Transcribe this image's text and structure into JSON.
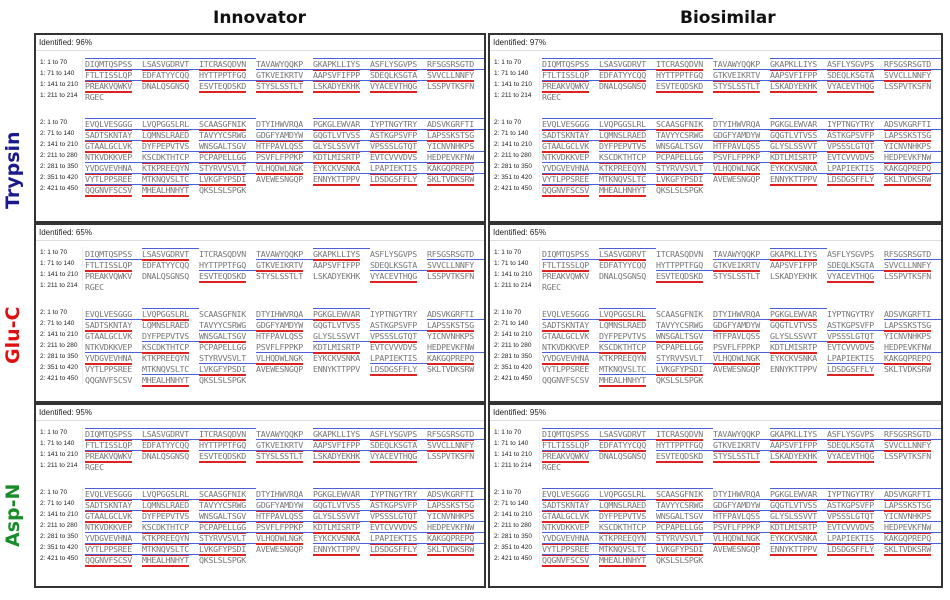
{
  "columns": {
    "left": "Innovator",
    "right": "Biosimilar"
  },
  "enzymes": [
    {
      "name": "Trypsin",
      "color": "#1a1a8c"
    },
    {
      "name": "Glu-C",
      "color": "#dd1111"
    },
    {
      "name": "Asp-N",
      "color": "#1a8c2a"
    }
  ],
  "panels": {
    "trypsin_innovator": {
      "identified": "Identified: 96%"
    },
    "trypsin_biosimilar": {
      "identified": "Identified: 97%"
    },
    "gluc_innovator": {
      "identified": "Identified: 65%"
    },
    "gluc_biosimilar": {
      "identified": "Identified: 65%"
    },
    "aspn_innovator": {
      "identified": "Identified: 95%"
    },
    "aspn_biosimilar": {
      "identified": "Identified: 95%"
    }
  },
  "chain1": {
    "labels": [
      "1: 1 to 70",
      "1: 71 to 140",
      "1: 141 to 210",
      "1: 211 to 214"
    ],
    "rows": [
      [
        "DIQMTQSPSS",
        "LSASVGDRVT",
        "ITCRASQDVN",
        "TAVAWYQQKP",
        "GKAPKLLIYS",
        "ASFLYSGVPS",
        "RFSGSRSGTD"
      ],
      [
        "FTLTISSLQP",
        "EDFATYYCQQ",
        "HYTTPPTFGQ",
        "GTKVEIKRTV",
        "AAPSVFIFPP",
        "SDEQLKSGTA",
        "SVVCLLNNFY"
      ],
      [
        "PREAKVQWKV",
        "DNALQSGNSQ",
        "ESVTEQDSKD",
        "STYSLSSTLT",
        "LSKADYEKHK",
        "VYACEVTHQG",
        "LSSPVTKSFN"
      ],
      [
        "RGEC"
      ]
    ]
  },
  "chain2": {
    "labels": [
      "2: 1 to 70",
      "2: 71 to 140",
      "2: 141 to 210",
      "2: 211 to 280",
      "2: 281 to 350",
      "2: 351 to 420",
      "2: 421 to 450"
    ],
    "rows": [
      [
        "EVQLVESGGG",
        "LVQPGGSLRL",
        "SCAASGFNIK",
        "DTYIHWVRQA",
        "PGKGLEWVAR",
        "IYPTNGYTRY",
        "ADSVKGRFTI"
      ],
      [
        "SADTSKNTAY",
        "LQMNSLRAED",
        "TAVYYCSRWG",
        "GDGFYAMDYW",
        "GQGTLVTVSS",
        "ASTKGPSVFP",
        "LAPSSKSTSG"
      ],
      [
        "GTAALGCLVK",
        "DYFPEPVTVS",
        "WNSGALTSGV",
        "HTFPAVLQSS",
        "GLYSLSSVVT",
        "VPSSSLGTQT",
        "YICNVNHKPS"
      ],
      [
        "NTKVDKKVEP",
        "KSCDKTHTCP",
        "PCPAPELLGG",
        "PSVFLFPPKP",
        "KDTLMISRTP",
        "EVTCVVVDVS",
        "HEDPEVKFNW"
      ],
      [
        "YVDGVEVHNA",
        "KTKPREEQYN",
        "STYRVVSVLT",
        "VLHQDWLNGK",
        "EYKCKVSNKA",
        "LPAPIEKTIS",
        "KAKGQPREPQ"
      ],
      [
        "VYTLPPSREE",
        "MTKNQVSLTC",
        "LVKGFYPSDI",
        "AVEWESNGQP",
        "ENNYKTTPPV",
        "LDSDGSFFLY",
        "SKLTVDKSRW"
      ],
      [
        "QQGNVFSCSV",
        "MHEALHNHYT",
        "QKSLSLSPGK"
      ]
    ]
  },
  "legend": {
    "coverage_colors": {
      "top_bar": "#4a5fd8",
      "underline": "#d22222"
    }
  }
}
